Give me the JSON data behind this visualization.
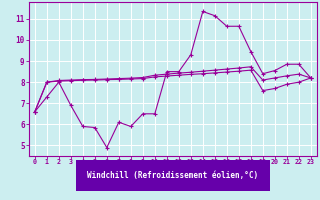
{
  "xlabel": "Windchill (Refroidissement éolien,°C)",
  "bg_color": "#cceef0",
  "label_bg_color": "#6600aa",
  "line_color": "#990099",
  "grid_color": "#aadddd",
  "spine_color": "#6600aa",
  "x_ticks": [
    0,
    1,
    2,
    3,
    4,
    5,
    6,
    7,
    8,
    9,
    10,
    11,
    12,
    13,
    14,
    15,
    16,
    17,
    18,
    19,
    20,
    21,
    22,
    23
  ],
  "y_ticks": [
    5,
    6,
    7,
    8,
    9,
    10,
    11
  ],
  "xlim": [
    -0.5,
    23.5
  ],
  "ylim": [
    4.5,
    11.8
  ],
  "series1_x": [
    0,
    1,
    2,
    3,
    4,
    5,
    6,
    7,
    8,
    9,
    10,
    11,
    12,
    13,
    14,
    15,
    16,
    17,
    18,
    19,
    20,
    21,
    22,
    23
  ],
  "series1_y": [
    6.6,
    7.3,
    8.0,
    6.9,
    5.9,
    5.85,
    4.9,
    6.1,
    5.9,
    6.5,
    6.5,
    8.5,
    8.5,
    9.3,
    11.35,
    11.15,
    10.65,
    10.65,
    9.45,
    8.4,
    8.55,
    8.85,
    8.85,
    8.2
  ],
  "series2_x": [
    0,
    1,
    2,
    3,
    4,
    5,
    6,
    7,
    8,
    9,
    10,
    11,
    12,
    13,
    14,
    15,
    16,
    17,
    18,
    19,
    20,
    21,
    22,
    23
  ],
  "series2_y": [
    6.6,
    8.0,
    8.08,
    8.1,
    8.12,
    8.13,
    8.15,
    8.17,
    8.19,
    8.22,
    8.33,
    8.38,
    8.43,
    8.47,
    8.52,
    8.57,
    8.62,
    8.67,
    8.73,
    8.1,
    8.2,
    8.3,
    8.38,
    8.2
  ],
  "series3_x": [
    0,
    1,
    2,
    3,
    4,
    5,
    6,
    7,
    8,
    9,
    10,
    11,
    12,
    13,
    14,
    15,
    16,
    17,
    18,
    19,
    20,
    21,
    22,
    23
  ],
  "series3_y": [
    6.6,
    8.0,
    8.05,
    8.07,
    8.09,
    8.1,
    8.12,
    8.13,
    8.15,
    8.17,
    8.25,
    8.29,
    8.33,
    8.37,
    8.4,
    8.44,
    8.48,
    8.52,
    8.57,
    7.6,
    7.7,
    7.9,
    8.0,
    8.2
  ]
}
